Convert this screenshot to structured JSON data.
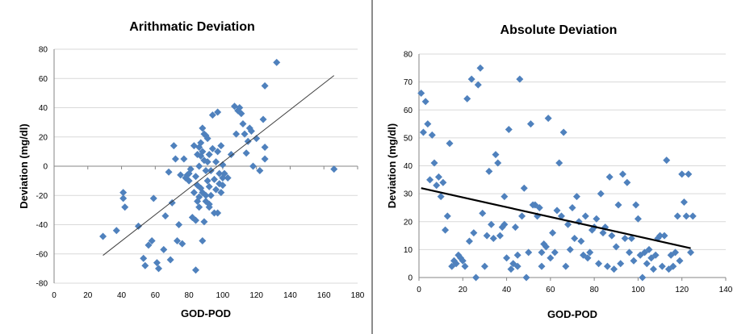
{
  "chart_data": [
    {
      "type": "scatter",
      "title": "Arithmatic Deviation",
      "xlabel": "GOD-POD",
      "ylabel": "Deviation (mg/dl)",
      "xlim": [
        0,
        180
      ],
      "ylim": [
        -80,
        80
      ],
      "xticks": [
        "0",
        "20",
        "40",
        "60",
        "80",
        "100",
        "120",
        "140",
        "160",
        "180"
      ],
      "yticks": [
        "80",
        "60",
        "40",
        "20",
        "0",
        "-20",
        "-40",
        "-60",
        "-80"
      ],
      "grid": "horizontal",
      "marker_color": "#4F81BD",
      "trendline": {
        "type": "linear",
        "x": [
          29,
          166
        ],
        "y": [
          -61,
          62
        ],
        "color": "#404040"
      },
      "series": [
        {
          "x": [
            29,
            37,
            41,
            41,
            42,
            50,
            53,
            54,
            56,
            58,
            59,
            61,
            62,
            65,
            66,
            68,
            69,
            70,
            71,
            72,
            73,
            74,
            75,
            76,
            77,
            78,
            79,
            80,
            80,
            81,
            82,
            83,
            83,
            84,
            84,
            85,
            85,
            85,
            86,
            86,
            86,
            87,
            87,
            87,
            88,
            88,
            88,
            89,
            89,
            89,
            90,
            90,
            90,
            91,
            91,
            91,
            92,
            92,
            92,
            93,
            93,
            94,
            94,
            95,
            95,
            96,
            96,
            97,
            97,
            98,
            98,
            99,
            99,
            100,
            100,
            100,
            101,
            103,
            105,
            107,
            108,
            109,
            110,
            111,
            112,
            113,
            114,
            115,
            116,
            117,
            118,
            120,
            122,
            124,
            125,
            125,
            125,
            132,
            166,
            84,
            88,
            90,
            86,
            92,
            97
          ],
          "y": [
            -48,
            -44,
            -18,
            -22,
            -28,
            -41,
            -63,
            -68,
            -54,
            -51,
            -22,
            -66,
            -70,
            -57,
            -34,
            -4,
            -64,
            -25,
            14,
            5,
            -51,
            -40,
            -6,
            -53,
            5,
            -8,
            -6,
            -10,
            -5,
            -2,
            -35,
            14,
            -18,
            -37,
            -71,
            8,
            -24,
            -13,
            13,
            0,
            -28,
            16,
            7,
            -15,
            -51,
            26,
            10,
            22,
            4,
            -38,
            -3,
            -20,
            21,
            19,
            -10,
            3,
            -26,
            8,
            -14,
            -20,
            -3,
            35,
            12,
            -9,
            -32,
            3,
            -16,
            37,
            10,
            -5,
            -12,
            14,
            -18,
            1,
            -8,
            -13,
            -5,
            -8,
            8,
            41,
            22,
            38,
            40,
            36,
            29,
            22,
            9,
            17,
            26,
            24,
            0,
            19,
            -3,
            32,
            13,
            5,
            55,
            71,
            -2,
            -7,
            -18,
            -24,
            -21,
            -28,
            -32
          ],
          "color": "#4F81BD",
          "marker": "diamond"
        }
      ]
    },
    {
      "type": "scatter",
      "title": "Absolute Deviation",
      "xlabel": "GOD-POD",
      "ylabel": "Deviation (mg/dl)",
      "xlim": [
        0,
        140
      ],
      "ylim": [
        0,
        80
      ],
      "xticks": [
        "0",
        "20",
        "40",
        "60",
        "80",
        "100",
        "120",
        "140"
      ],
      "yticks": [
        "80",
        "70",
        "60",
        "50",
        "40",
        "30",
        "20",
        "10",
        "0"
      ],
      "grid": "horizontal",
      "marker_color": "#4F81BD",
      "trendline": {
        "type": "linear",
        "x": [
          1,
          124
        ],
        "y": [
          32,
          10.5
        ],
        "color": "#000000"
      },
      "series": [
        {
          "x": [
            1,
            2,
            3,
            4,
            5,
            6,
            7,
            8,
            9,
            10,
            11,
            12,
            13,
            14,
            15,
            16,
            17,
            18,
            19,
            20,
            21,
            22,
            23,
            24,
            25,
            26,
            27,
            28,
            29,
            30,
            31,
            32,
            33,
            34,
            35,
            36,
            37,
            38,
            39,
            40,
            41,
            42,
            43,
            44,
            45,
            46,
            47,
            48,
            49,
            50,
            51,
            52,
            53,
            54,
            55,
            56,
            57,
            58,
            59,
            60,
            61,
            62,
            63,
            64,
            65,
            66,
            67,
            68,
            69,
            70,
            71,
            72,
            73,
            74,
            75,
            76,
            77,
            78,
            79,
            80,
            81,
            82,
            83,
            84,
            85,
            86,
            87,
            88,
            89,
            90,
            91,
            92,
            93,
            94,
            95,
            96,
            97,
            98,
            99,
            100,
            101,
            102,
            103,
            104,
            105,
            106,
            107,
            108,
            109,
            110,
            111,
            112,
            113,
            114,
            115,
            116,
            117,
            118,
            119,
            120,
            121,
            122,
            123,
            124,
            125,
            39,
            45,
            56
          ],
          "y": [
            66,
            52,
            63,
            55,
            35,
            51,
            41,
            33,
            36,
            29,
            34,
            17,
            22,
            48,
            4,
            6,
            5,
            8,
            7,
            6,
            4,
            64,
            13,
            71,
            16,
            0,
            69,
            75,
            23,
            4,
            15,
            38,
            19,
            14,
            44,
            41,
            15,
            18,
            29,
            7,
            53,
            3,
            5,
            18,
            4,
            71,
            22,
            32,
            0,
            9,
            55,
            26,
            26,
            22,
            25,
            9,
            12,
            11,
            57,
            7,
            16,
            9,
            24,
            41,
            22,
            52,
            4,
            19,
            10,
            25,
            14,
            29,
            20,
            13,
            8,
            22,
            7,
            9,
            17,
            18,
            21,
            5,
            30,
            16,
            18,
            4,
            36,
            15,
            3,
            11,
            26,
            5,
            37,
            14,
            34,
            9,
            14,
            6,
            26,
            21,
            8,
            0,
            9,
            5,
            10,
            7,
            3,
            8,
            14,
            15,
            4,
            15,
            42,
            3,
            8,
            4,
            9,
            22,
            6,
            37,
            27,
            22,
            37,
            9,
            22,
            19,
            8,
            4
          ],
          "color": "#4F81BD",
          "marker": "diamond"
        }
      ]
    }
  ]
}
